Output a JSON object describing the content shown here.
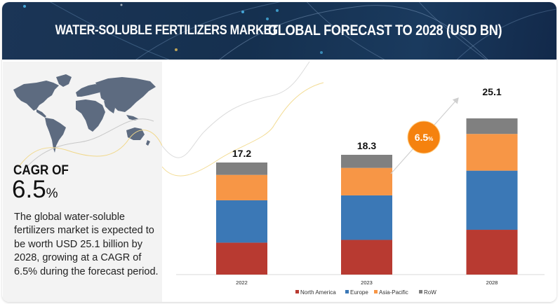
{
  "header": {
    "title_part1": "WATER-SOLUBLE FERTILIZERS MARKET",
    "title_part2": "GLOBAL FORECAST TO 2028 (USD BN)"
  },
  "summary": {
    "cagr_label": "CAGR OF",
    "cagr_value": "6.5",
    "cagr_unit": "%",
    "description": "The global water-soluble fertilizers market is expected to be worth USD 25.1 billion by 2028, growing at a CAGR of 6.5% during the forecast period.",
    "map_icon": "world-map-icon"
  },
  "chart_data": {
    "type": "bar",
    "stacked": true,
    "title": "Water-Soluble Fertilizers Market Global Forecast to 2028 (USD BN)",
    "xlabel": "",
    "ylabel": "USD BN",
    "categories": [
      "2022",
      "2023",
      "2028"
    ],
    "totals": [
      "17.2",
      "18.3",
      "25.1"
    ],
    "total_values": [
      17.2,
      18.3,
      25.1
    ],
    "series": [
      {
        "name": "North America",
        "color": "#b83a31",
        "values": [
          4.9,
          5.3,
          7.2
        ]
      },
      {
        "name": "Europe",
        "color": "#3b78b6",
        "values": [
          6.5,
          6.8,
          9.5
        ]
      },
      {
        "name": "Asia-Pacific",
        "color": "#f79646",
        "values": [
          3.9,
          4.2,
          5.9
        ]
      },
      {
        "name": "RoW",
        "color": "#808080",
        "values": [
          1.9,
          2.0,
          2.5
        ]
      }
    ],
    "ylim": [
      0,
      25.1
    ],
    "grid": false,
    "legend_position": "bottom",
    "annotation": {
      "text": "6.5",
      "unit": "%",
      "color": "#f5820f",
      "label": "CAGR growth arrow"
    }
  }
}
